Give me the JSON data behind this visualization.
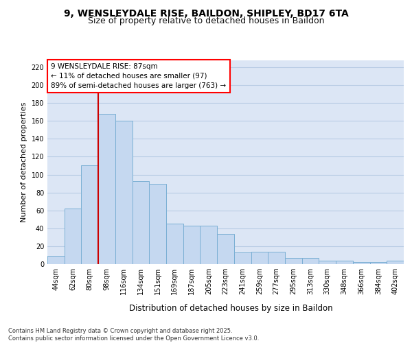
{
  "title_line1": "9, WENSLEYDALE RISE, BAILDON, SHIPLEY, BD17 6TA",
  "title_line2": "Size of property relative to detached houses in Baildon",
  "xlabel": "Distribution of detached houses by size in Baildon",
  "ylabel": "Number of detached properties",
  "categories": [
    "44sqm",
    "62sqm",
    "80sqm",
    "98sqm",
    "116sqm",
    "134sqm",
    "151sqm",
    "169sqm",
    "187sqm",
    "205sqm",
    "223sqm",
    "241sqm",
    "259sqm",
    "277sqm",
    "295sqm",
    "313sqm",
    "330sqm",
    "348sqm",
    "366sqm",
    "384sqm",
    "402sqm"
  ],
  "values": [
    9,
    62,
    110,
    168,
    160,
    93,
    90,
    45,
    43,
    43,
    34,
    13,
    14,
    14,
    7,
    7,
    4,
    4,
    2,
    2,
    4
  ],
  "bar_color": "#c5d8f0",
  "bar_edge_color": "#7aafd4",
  "grid_color": "#b8cce4",
  "background_color": "#dce6f5",
  "vline_color": "#cc0000",
  "vline_x": 2.5,
  "annotation_text": "9 WENSLEYDALE RISE: 87sqm\n← 11% of detached houses are smaller (97)\n89% of semi-detached houses are larger (763) →",
  "footer_text": "Contains HM Land Registry data © Crown copyright and database right 2025.\nContains public sector information licensed under the Open Government Licence v3.0.",
  "ylim": [
    0,
    228
  ],
  "yticks": [
    0,
    20,
    40,
    60,
    80,
    100,
    120,
    140,
    160,
    180,
    200,
    220
  ]
}
